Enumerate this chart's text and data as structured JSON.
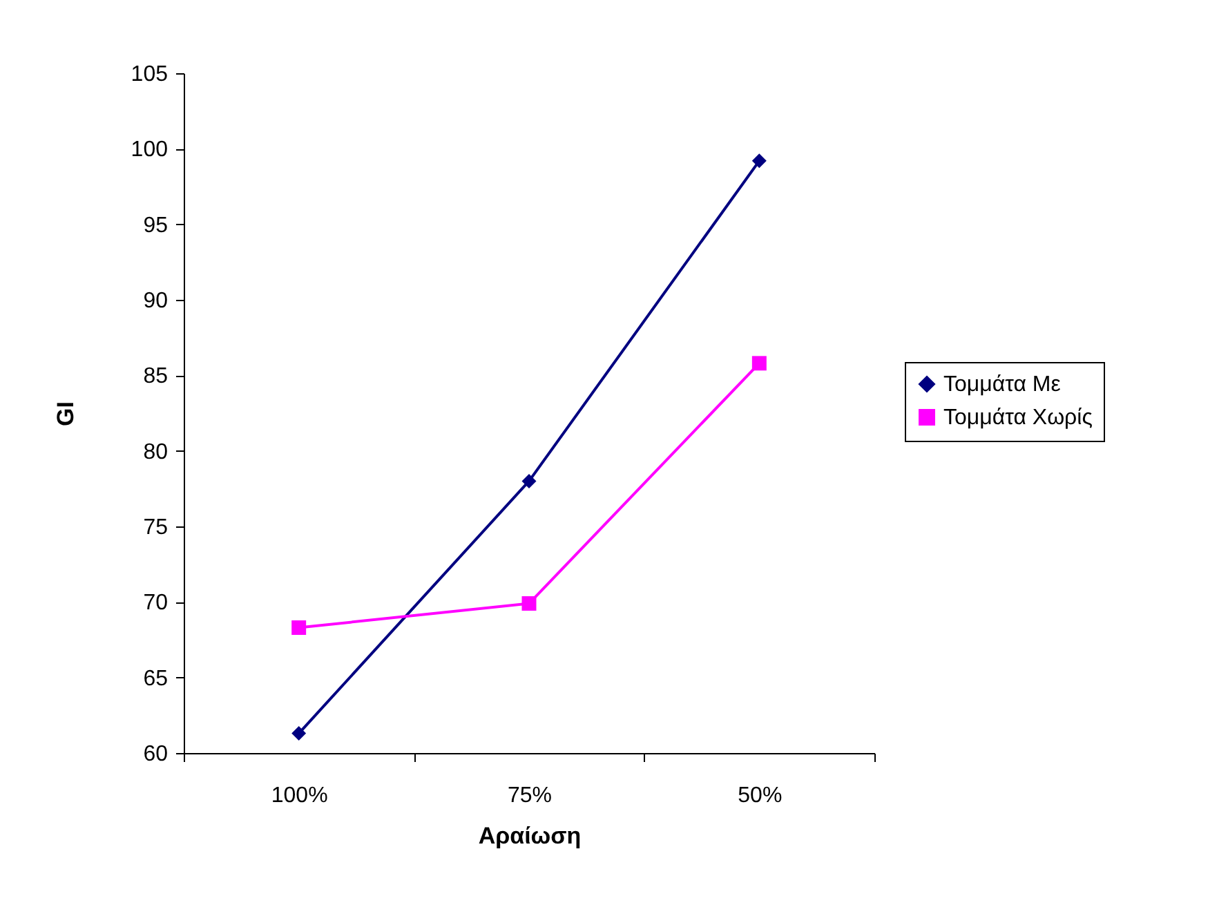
{
  "chart_data": {
    "type": "line",
    "xlabel": "Αραίωση",
    "ylabel": "GI",
    "categories": [
      "100%",
      "75%",
      "50%"
    ],
    "series": [
      {
        "name": "Τομμάτα Με",
        "color": "#000080",
        "marker": "diamond",
        "values": [
          61.3,
          78.0,
          99.2
        ]
      },
      {
        "name": "Τομμάτα Χωρίς",
        "color": "#ff00ff",
        "marker": "square",
        "values": [
          68.3,
          69.9,
          85.8
        ]
      }
    ],
    "ylim": [
      60,
      105
    ],
    "yticks": [
      60,
      65,
      70,
      75,
      80,
      85,
      90,
      95,
      100,
      105
    ],
    "grid": false,
    "legend": "right",
    "line_style": "solid"
  }
}
